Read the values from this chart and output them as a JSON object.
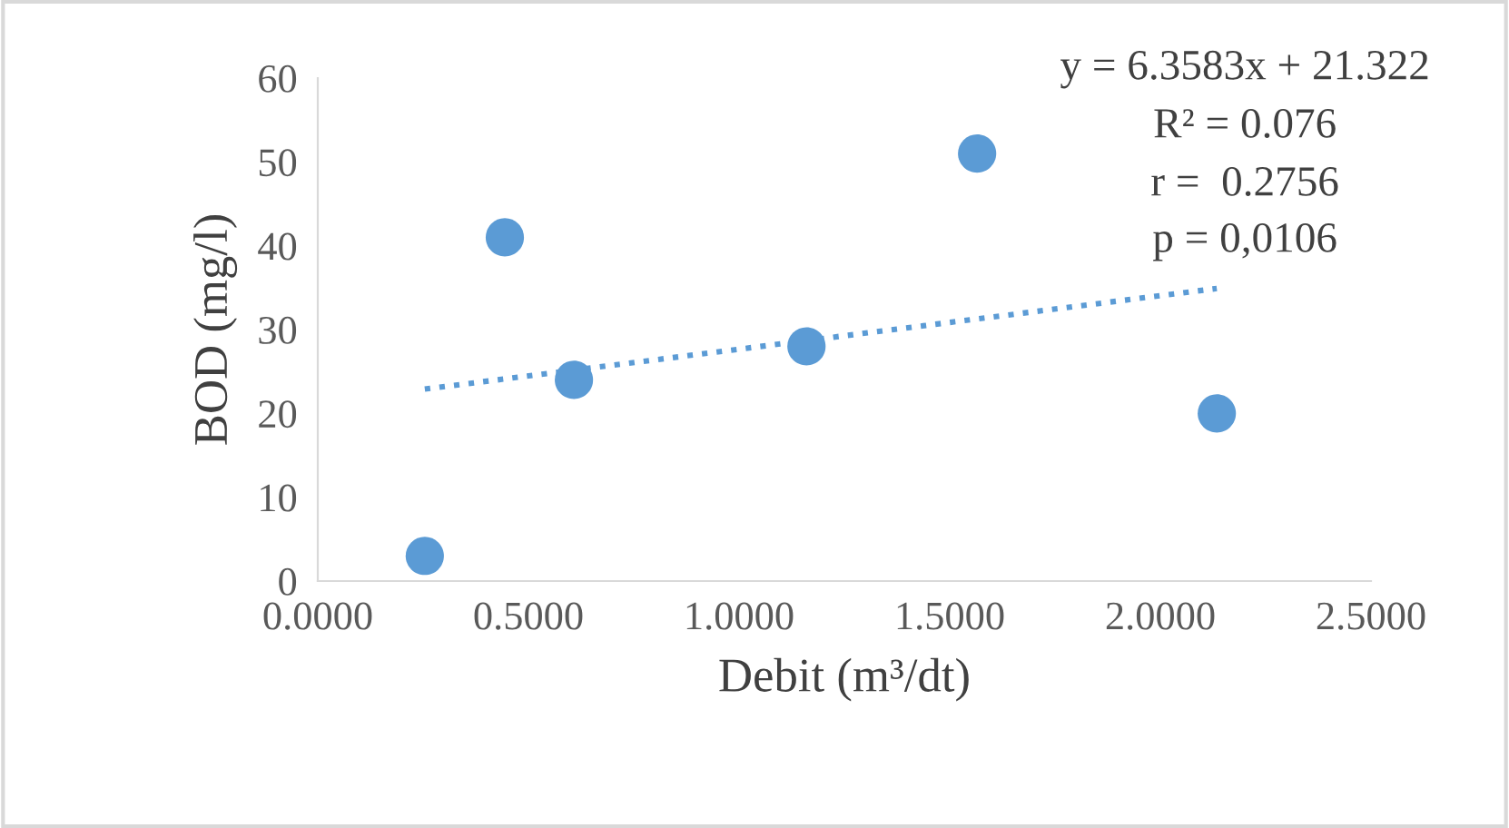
{
  "chart_data": {
    "type": "scatter",
    "xlabel": "Debit (m³/dt)",
    "ylabel": "BOD (mg/l)",
    "series": [
      {
        "color": "#5b9bd5",
        "marker": "circle",
        "x": [
          0.254,
          0.444,
          0.608,
          1.16,
          1.565,
          2.134
        ],
        "values": [
          3,
          41,
          24,
          28,
          51,
          20
        ]
      },
      {
        "type": "line",
        "color": "#5b9bd5",
        "line_style": "dotted",
        "marker": "none",
        "x": [
          0.254,
          2.134
        ],
        "values": [
          22.9,
          34.9
        ]
      }
    ],
    "annotations": [
      "y = 6.3583x + 21.322",
      "R² = 0.076",
      "r =  0.2756",
      "p = 0,0106"
    ],
    "xlim": [
      0,
      2.5
    ],
    "ylim": [
      0,
      60
    ],
    "xticks": [
      {
        "value": 0,
        "label": "0.0000"
      },
      {
        "value": 0.5,
        "label": "0.5000"
      },
      {
        "value": 1,
        "label": "1.0000"
      },
      {
        "value": 1.5,
        "label": "1.5000"
      },
      {
        "value": 2,
        "label": "2.0000"
      },
      {
        "value": 2.5,
        "label": "2.5000"
      }
    ],
    "yticks": [
      0,
      10,
      20,
      30,
      40,
      50,
      60
    ],
    "grid": false,
    "legend": false
  }
}
